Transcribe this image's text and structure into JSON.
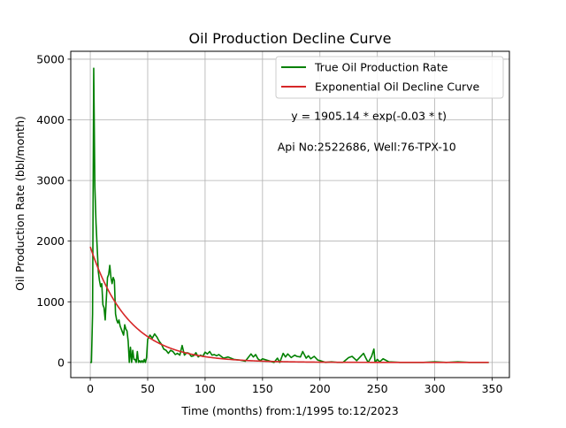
{
  "chart_data": {
    "type": "line",
    "title": "Oil Production Decline Curve",
    "xlabel": "Time (months) from:1/1995 to:12/2023",
    "ylabel": "Oil Production Rate (bbl/month)",
    "xlim": [
      -17,
      365
    ],
    "ylim": [
      -250,
      5130
    ],
    "xticks": [
      0,
      50,
      100,
      150,
      200,
      250,
      300,
      350
    ],
    "yticks": [
      0,
      1000,
      2000,
      3000,
      4000,
      5000
    ],
    "grid": true,
    "legend_position": "top-right",
    "annotations": [
      {
        "text": "y = 1905.14 * exp(-0.03 * t)",
        "x": 175,
        "y": 4000
      },
      {
        "text": "Api No:2522686, Well:76-TPX-10",
        "x": 163,
        "y": 3490
      }
    ],
    "series": [
      {
        "name": "True Oil Production Rate",
        "color": "#008000",
        "x": [
          0,
          1,
          2,
          3,
          4,
          5,
          6,
          7,
          8,
          9,
          10,
          11,
          12,
          13,
          14,
          15,
          16,
          17,
          18,
          19,
          20,
          21,
          22,
          23,
          24,
          25,
          26,
          27,
          28,
          29,
          30,
          31,
          32,
          33,
          34,
          35,
          36,
          37,
          38,
          39,
          40,
          41,
          42,
          43,
          44,
          45,
          46,
          47,
          48,
          49,
          50,
          52,
          54,
          56,
          58,
          60,
          62,
          64,
          66,
          68,
          70,
          72,
          74,
          76,
          78,
          80,
          82,
          84,
          86,
          88,
          90,
          92,
          94,
          96,
          98,
          100,
          102,
          104,
          106,
          108,
          110,
          112,
          114,
          116,
          118,
          120,
          125,
          130,
          135,
          140,
          142,
          144,
          146,
          148,
          150,
          155,
          160,
          163,
          165,
          168,
          170,
          172,
          175,
          178,
          180,
          183,
          185,
          188,
          190,
          192,
          195,
          198,
          200,
          205,
          210,
          215,
          220,
          225,
          228,
          232,
          235,
          238,
          240,
          242,
          245,
          247,
          248,
          250,
          252,
          255,
          260,
          270,
          280,
          290,
          300,
          310,
          320,
          330,
          340,
          347
        ],
        "values": [
          0,
          0,
          800,
          4850,
          2900,
          2300,
          1900,
          1500,
          1350,
          1250,
          1300,
          950,
          900,
          700,
          1050,
          1400,
          1450,
          1600,
          1400,
          1300,
          1400,
          1350,
          800,
          700,
          650,
          700,
          600,
          550,
          500,
          450,
          620,
          550,
          520,
          350,
          0,
          250,
          0,
          200,
          50,
          50,
          0,
          180,
          0,
          30,
          0,
          30,
          0,
          50,
          0,
          80,
          380,
          450,
          400,
          470,
          420,
          350,
          300,
          220,
          200,
          150,
          200,
          180,
          130,
          150,
          120,
          280,
          120,
          160,
          150,
          100,
          110,
          160,
          90,
          120,
          100,
          170,
          140,
          180,
          120,
          130,
          110,
          130,
          100,
          70,
          80,
          90,
          50,
          40,
          20,
          140,
          90,
          130,
          60,
          30,
          60,
          30,
          0,
          70,
          0,
          150,
          90,
          140,
          80,
          120,
          100,
          90,
          180,
          70,
          110,
          60,
          100,
          40,
          30,
          0,
          10,
          0,
          0,
          80,
          100,
          30,
          90,
          150,
          70,
          0,
          100,
          220,
          0,
          50,
          10,
          60,
          10,
          0,
          0,
          0,
          10,
          0,
          10,
          0,
          0,
          0
        ]
      },
      {
        "name": "Exponential Oil Decline Curve",
        "color": "#d62728",
        "model": {
          "a": 1905.14,
          "b": 0.03
        },
        "x_start": 0,
        "x_end": 347
      }
    ]
  }
}
